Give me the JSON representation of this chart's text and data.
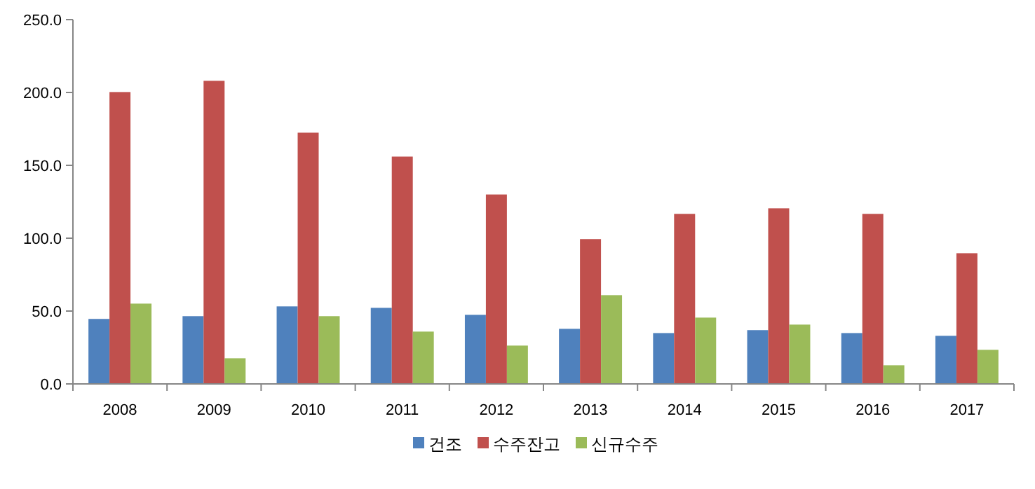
{
  "chart_data": {
    "type": "bar",
    "categories": [
      "2008",
      "2009",
      "2010",
      "2011",
      "2012",
      "2013",
      "2014",
      "2015",
      "2016",
      "2017"
    ],
    "series": [
      {
        "name": "건조",
        "color": "#4f81bd",
        "values": [
          44.6,
          46.5,
          53.2,
          52.2,
          47.4,
          37.8,
          34.9,
          36.9,
          34.9,
          33.0
        ]
      },
      {
        "name": "수주잔고",
        "color": "#c0504d",
        "values": [
          200.3,
          208.0,
          172.4,
          156.0,
          130.0,
          99.4,
          116.7,
          120.5,
          116.7,
          89.7
        ]
      },
      {
        "name": "신규수주",
        "color": "#9bbb59",
        "values": [
          55.1,
          17.6,
          46.5,
          35.9,
          26.3,
          60.9,
          45.5,
          40.7,
          12.8,
          23.4
        ]
      }
    ],
    "ylim": [
      0,
      250
    ],
    "yticks": [
      {
        "value": 0,
        "label": "0.0"
      },
      {
        "value": 50,
        "label": "50.0"
      },
      {
        "value": 100,
        "label": "100.0"
      },
      {
        "value": 150,
        "label": "150.0"
      },
      {
        "value": 200,
        "label": "200.0"
      },
      {
        "value": 250,
        "label": "250.0"
      }
    ],
    "grid": false,
    "legend": "bottom"
  }
}
